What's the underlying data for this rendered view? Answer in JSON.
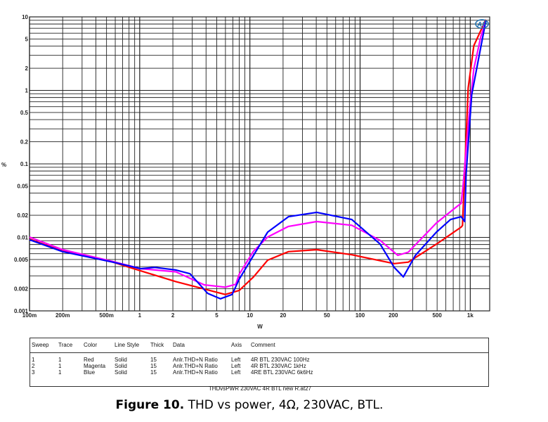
{
  "chart_data": {
    "type": "line",
    "title": "",
    "xlabel": "W",
    "ylabel": "%",
    "x_scale": "log",
    "y_scale": "log",
    "xlim": [
      0.1,
      1500
    ],
    "ylim": [
      0.001,
      10
    ],
    "grid": true,
    "x_ticks": [
      {
        "value": 0.1,
        "label": "100m"
      },
      {
        "value": 0.2,
        "label": "200m"
      },
      {
        "value": 0.5,
        "label": "500m"
      },
      {
        "value": 1,
        "label": "1"
      },
      {
        "value": 2,
        "label": "2"
      },
      {
        "value": 5,
        "label": "5"
      },
      {
        "value": 10,
        "label": "10"
      },
      {
        "value": 20,
        "label": "20"
      },
      {
        "value": 50,
        "label": "50"
      },
      {
        "value": 100,
        "label": "100"
      },
      {
        "value": 200,
        "label": "200"
      },
      {
        "value": 500,
        "label": "500"
      },
      {
        "value": 1000,
        "label": "1k"
      }
    ],
    "y_ticks": [
      {
        "value": 10,
        "label": "10"
      },
      {
        "value": 5,
        "label": "5"
      },
      {
        "value": 2,
        "label": "2"
      },
      {
        "value": 1,
        "label": "1"
      },
      {
        "value": 0.5,
        "label": "0.5"
      },
      {
        "value": 0.2,
        "label": "0.2"
      },
      {
        "value": 0.1,
        "label": "0.1"
      },
      {
        "value": 0.05,
        "label": "0.05"
      },
      {
        "value": 0.02,
        "label": "0.02"
      },
      {
        "value": 0.01,
        "label": "0.01"
      },
      {
        "value": 0.005,
        "label": "0.005"
      },
      {
        "value": 0.002,
        "label": "0.002"
      },
      {
        "value": 0.001,
        "label": "0.001"
      }
    ],
    "series": [
      {
        "name": "4R BTL 230VAC 100Hz",
        "color": "#ff0000",
        "x": [
          0.1,
          0.2,
          0.57,
          1.02,
          2.13,
          5.97,
          8.0,
          10.8,
          14.5,
          22.4,
          40.4,
          84,
          204,
          274,
          493,
          826,
          850,
          889,
          957,
          1077,
          1383
        ],
        "y": [
          0.0095,
          0.0065,
          0.0046,
          0.0035,
          0.0025,
          0.00167,
          0.0019,
          0.0029,
          0.0049,
          0.0064,
          0.0068,
          0.0058,
          0.0044,
          0.0046,
          0.0081,
          0.0138,
          0.0145,
          0.078,
          1.08,
          4.05,
          9.2
        ]
      },
      {
        "name": "4R BTL 230VAC 1kHz",
        "color": "#ff00ff",
        "x": [
          0.1,
          0.2,
          0.57,
          1.02,
          2.13,
          3.85,
          5.97,
          7.45,
          8.0,
          10.8,
          14.5,
          22.4,
          40.4,
          84,
          152,
          220,
          274,
          493,
          767,
          826,
          863,
          986,
          1077,
          1247,
          1383
        ],
        "y": [
          0.0101,
          0.0068,
          0.0047,
          0.00375,
          0.0034,
          0.00226,
          0.0021,
          0.0023,
          0.00315,
          0.0065,
          0.0101,
          0.0141,
          0.0164,
          0.0146,
          0.0091,
          0.0057,
          0.0063,
          0.0157,
          0.0267,
          0.029,
          0.053,
          0.56,
          1.96,
          5.4,
          8.8
        ]
      },
      {
        "name": "4RE BTL 230VAC 6k6Hz",
        "color": "#0000ff",
        "x": [
          0.1,
          0.2,
          0.57,
          1.02,
          1.37,
          2.13,
          2.86,
          4.14,
          5.4,
          6.9,
          8.0,
          10.8,
          14.5,
          22.4,
          40.4,
          84,
          152,
          204,
          247,
          318,
          493,
          662,
          826,
          889,
          916,
          1030,
          1194,
          1383
        ],
        "y": [
          0.0093,
          0.0064,
          0.0046,
          0.00375,
          0.0039,
          0.0036,
          0.0032,
          0.00173,
          0.00146,
          0.00167,
          0.0027,
          0.0057,
          0.0118,
          0.0191,
          0.0219,
          0.0175,
          0.0081,
          0.0039,
          0.0029,
          0.0057,
          0.0118,
          0.0175,
          0.0191,
          0.0164,
          0.072,
          0.87,
          2.8,
          8.8
        ]
      }
    ]
  },
  "logo": "AP",
  "legend_table": {
    "headers": [
      "Sweep",
      "Trace",
      "Color",
      "Line Style",
      "Thick",
      "Data",
      "Axis",
      "Comment"
    ],
    "rows": [
      [
        "1",
        "1",
        "Red",
        "Solid",
        "15",
        "Anlr.THD+N Ratio",
        "Left",
        "4R BTL 230VAC 100Hz"
      ],
      [
        "2",
        "1",
        "Magenta",
        "Solid",
        "15",
        "Anlr.THD+N Ratio",
        "Left",
        "4R BTL 230VAC 1kHz"
      ],
      [
        "3",
        "1",
        "Blue",
        "Solid",
        "15",
        "Anlr.THD+N Ratio",
        "Left",
        "4RE BTL 230VAC 6k6Hz"
      ]
    ]
  },
  "file_caption": "THDvsPWR 230VAC 4R BTL new R.at27",
  "figure_caption": {
    "label": "Figure 10.",
    "text": " THD vs power, 4Ω, 230VAC, BTL."
  }
}
